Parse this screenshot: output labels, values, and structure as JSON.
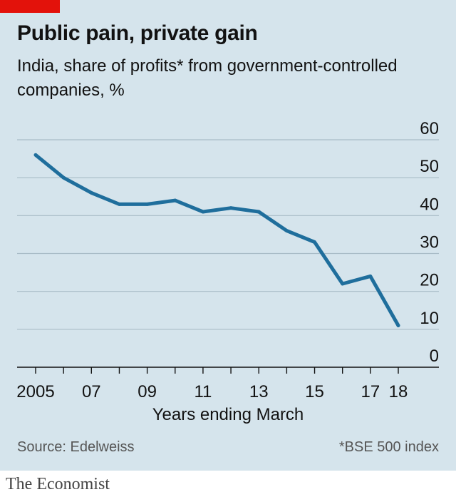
{
  "header": {
    "title": "Public pain, private gain",
    "subtitle": "India, share of profits* from government-controlled companies, %"
  },
  "footer": {
    "source": "Source: Edelweiss",
    "note": "*BSE 500 index",
    "brand": "The Economist"
  },
  "colors": {
    "line": "#1f6e9c",
    "accent": "#e3120b",
    "background": "#d5e4ec"
  },
  "chart_data": {
    "type": "line",
    "title": "Public pain, private gain",
    "subtitle": "India, share of profits* from government-controlled companies, %",
    "xlabel": "Years ending March",
    "ylabel": "",
    "x": [
      2005,
      2006,
      2007,
      2008,
      2009,
      2010,
      2011,
      2012,
      2013,
      2014,
      2015,
      2016,
      2017,
      2018
    ],
    "series": [
      {
        "values": [
          56,
          50,
          46,
          43,
          43,
          44,
          41,
          42,
          41,
          36,
          33,
          22,
          24,
          11
        ]
      }
    ],
    "xlim": [
      2005,
      2018
    ],
    "ylim": [
      0,
      60
    ],
    "yticks": [
      0,
      10,
      20,
      30,
      40,
      50,
      60
    ],
    "xticks": [
      2005,
      2006,
      2007,
      2008,
      2009,
      2010,
      2011,
      2012,
      2013,
      2014,
      2015,
      2016,
      2017,
      2018
    ],
    "xtick_labels": [
      {
        "x": 2005,
        "label": "2005"
      },
      {
        "x": 2007,
        "label": "07"
      },
      {
        "x": 2009,
        "label": "09"
      },
      {
        "x": 2011,
        "label": "11"
      },
      {
        "x": 2013,
        "label": "13"
      },
      {
        "x": 2015,
        "label": "15"
      },
      {
        "x": 2017,
        "label": "17"
      },
      {
        "x": 2018,
        "label": "18"
      }
    ],
    "grid": true,
    "y_axis_side": "right",
    "legend": "none"
  }
}
